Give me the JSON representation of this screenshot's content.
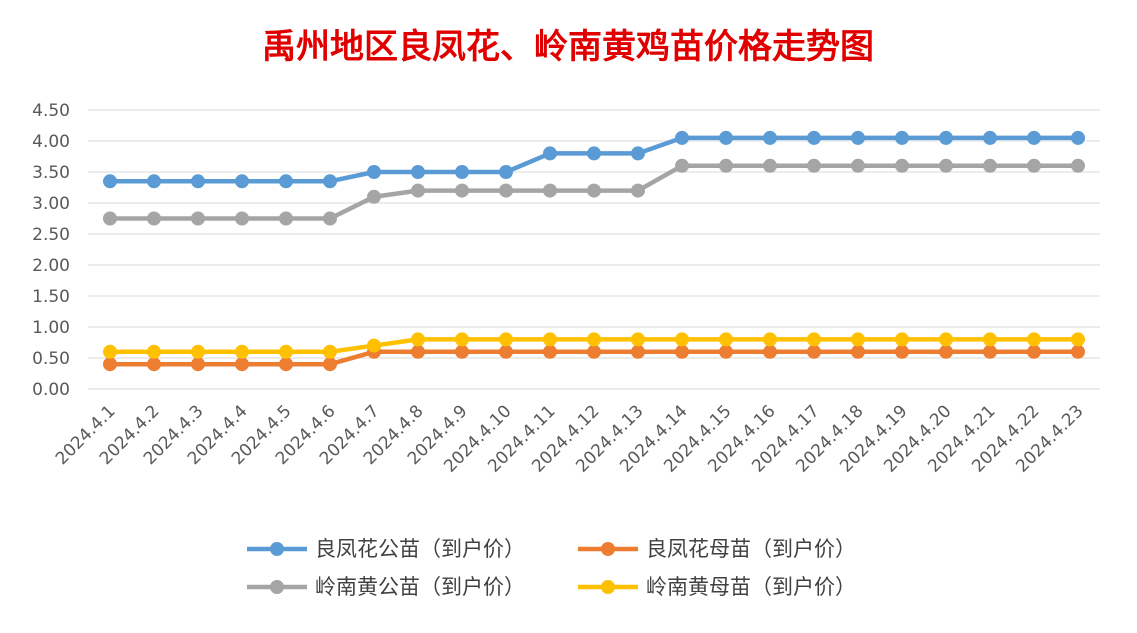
{
  "chart_data": {
    "type": "line",
    "title": "禹州地区良凤花、岭南黄鸡苗价格走势图",
    "title_color": "#E00000",
    "xlabel": "",
    "ylabel": "",
    "ylim": [
      0,
      4.5
    ],
    "yticks": [
      "0.00",
      "0.50",
      "1.00",
      "1.50",
      "2.00",
      "2.50",
      "3.00",
      "3.50",
      "4.00",
      "4.50"
    ],
    "grid": true,
    "legend_position": "bottom",
    "categories": [
      "2024.4.1",
      "2024.4.2",
      "2024.4.3",
      "2024.4.4",
      "2024.4.5",
      "2024.4.6",
      "2024.4.7",
      "2024.4.8",
      "2024.4.9",
      "2024.4.10",
      "2024.4.11",
      "2024.4.12",
      "2024.4.13",
      "2024.4.14",
      "2024.4.15",
      "2024.4.16",
      "2024.4.17",
      "2024.4.18",
      "2024.4.19",
      "2024.4.20",
      "2024.4.21",
      "2024.4.22",
      "2024.4.23"
    ],
    "series": [
      {
        "name": "良凤花公苗（到户价）",
        "color": "#5B9BD5",
        "values": [
          3.35,
          3.35,
          3.35,
          3.35,
          3.35,
          3.35,
          3.5,
          3.5,
          3.5,
          3.5,
          3.8,
          3.8,
          3.8,
          4.05,
          4.05,
          4.05,
          4.05,
          4.05,
          4.05,
          4.05,
          4.05,
          4.05,
          4.05
        ]
      },
      {
        "name": "良凤花母苗（到户价）",
        "color": "#ED7D31",
        "values": [
          0.4,
          0.4,
          0.4,
          0.4,
          0.4,
          0.4,
          0.6,
          0.6,
          0.6,
          0.6,
          0.6,
          0.6,
          0.6,
          0.6,
          0.6,
          0.6,
          0.6,
          0.6,
          0.6,
          0.6,
          0.6,
          0.6,
          0.6
        ]
      },
      {
        "name": "岭南黄公苗（到户价）",
        "color": "#A5A5A5",
        "values": [
          2.75,
          2.75,
          2.75,
          2.75,
          2.75,
          2.75,
          3.1,
          3.2,
          3.2,
          3.2,
          3.2,
          3.2,
          3.2,
          3.6,
          3.6,
          3.6,
          3.6,
          3.6,
          3.6,
          3.6,
          3.6,
          3.6,
          3.6
        ]
      },
      {
        "name": "岭南黄母苗（到户价）",
        "color": "#FFC000",
        "values": [
          0.6,
          0.6,
          0.6,
          0.6,
          0.6,
          0.6,
          0.7,
          0.8,
          0.8,
          0.8,
          0.8,
          0.8,
          0.8,
          0.8,
          0.8,
          0.8,
          0.8,
          0.8,
          0.8,
          0.8,
          0.8,
          0.8,
          0.8
        ]
      }
    ]
  }
}
